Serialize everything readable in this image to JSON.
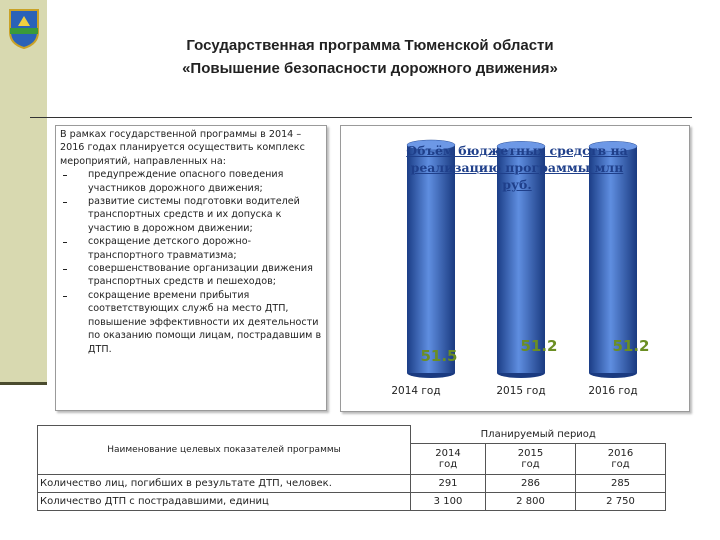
{
  "header": {
    "title": [
      "Государственная программа Тюменской области",
      "«Повышение безопасности дорожного движения»"
    ]
  },
  "text_box": {
    "intro": "В рамках  государственной программы в 2014 – 2016 годах планируется осуществить комплекс мероприятий, направленных на:",
    "items": [
      "предупреждение опасного поведения участников дорожного движения;",
      "развитие системы подготовки водителей транспортных средств и их допуска к участию в дорожном движении;",
      "сокращение детского дорожно-транспортного травматизма;",
      "совершенствование организации движения транспортных средств и пешеходов;",
      "сокращение времени прибытия соответствующих служб на место ДТП, повышение эффективности их деятельности по оказанию помощи лицам, пострадавшим в ДТП."
    ]
  },
  "chart_data": {
    "type": "bar",
    "title": "Объём бюджетных средств на реализацию программы млн руб.",
    "categories": [
      "2014 год",
      "2015 год",
      "2016 год"
    ],
    "values": [
      51.5,
      51.2,
      51.2
    ],
    "color": "#2f55a4",
    "label_color": "#6b8e23"
  },
  "table": {
    "header": {
      "name": "Наименование целевых показателей программы",
      "period": "Планируемый период",
      "years": [
        "2014\nгод",
        "2015\nгод",
        "2016\nгод"
      ]
    },
    "rows": [
      [
        "Количество лиц, погибших в результате ДТП, человек.",
        "291",
        "286",
        "285"
      ],
      [
        "Количество ДТП с пострадавшими, единиц",
        "3 100",
        "2 800",
        "2 750"
      ]
    ]
  }
}
